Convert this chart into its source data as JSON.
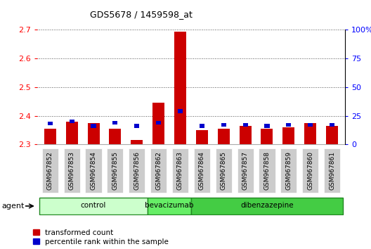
{
  "title": "GDS5678 / 1459598_at",
  "samples": [
    "GSM967852",
    "GSM967853",
    "GSM967854",
    "GSM967855",
    "GSM967856",
    "GSM967862",
    "GSM967863",
    "GSM967864",
    "GSM967865",
    "GSM967857",
    "GSM967858",
    "GSM967859",
    "GSM967860",
    "GSM967861"
  ],
  "transformed_count": [
    2.355,
    2.38,
    2.375,
    2.355,
    2.315,
    2.445,
    2.695,
    2.35,
    2.355,
    2.365,
    2.355,
    2.36,
    2.375,
    2.365
  ],
  "percentile_rank": [
    18,
    20,
    16,
    19,
    16,
    19,
    29,
    16,
    17,
    17,
    16,
    17,
    17,
    17
  ],
  "groups": [
    {
      "label": "control",
      "start": 0,
      "end": 5,
      "color": "#ccffcc"
    },
    {
      "label": "bevacizumab",
      "start": 5,
      "end": 7,
      "color": "#66ee66"
    },
    {
      "label": "dibenzazepine",
      "start": 7,
      "end": 14,
      "color": "#44cc44"
    }
  ],
  "ylim_left": [
    2.3,
    2.7
  ],
  "ylim_right": [
    0,
    100
  ],
  "yticks_left": [
    2.3,
    2.4,
    2.5,
    2.6,
    2.7
  ],
  "yticks_right": [
    0,
    25,
    50,
    75,
    100
  ],
  "ytick_labels_right": [
    "0",
    "25",
    "50",
    "75",
    "100%"
  ],
  "bar_color_red": "#cc0000",
  "bar_color_blue": "#0000cc",
  "baseline": 2.3,
  "background_color": "#ffffff",
  "grid_color": "#555555",
  "agent_label": "agent",
  "legend_red": "transformed count",
  "legend_blue": "percentile rank within the sample",
  "tick_bg_color": "#cccccc"
}
